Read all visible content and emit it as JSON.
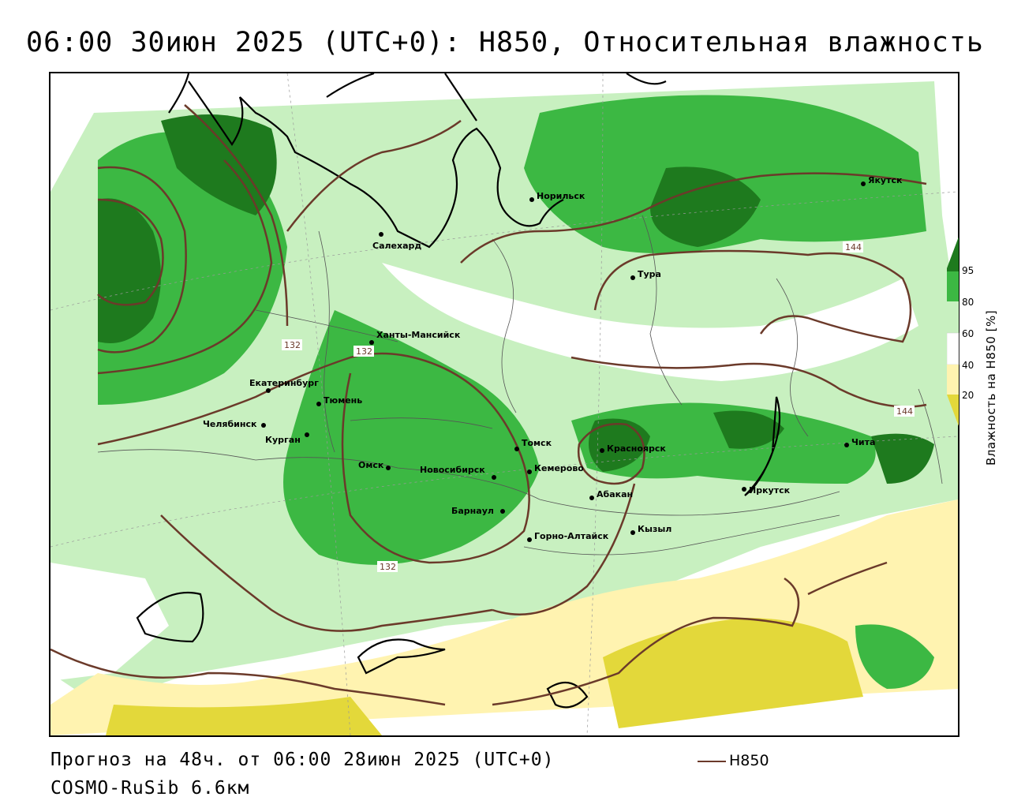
{
  "title": "06:00 30июн 2025 (UTC+0): H850, Относительная влажность",
  "footer": {
    "forecast": "Прогноз на 48ч. от 06:00 28июн 2025 (UTC+0)",
    "model": "COSMO-RuSib 6.6км"
  },
  "legend": {
    "line_label": "H850",
    "line_color": "#6b3a2a"
  },
  "colorbar": {
    "label": "Влажность на H850 [%]",
    "ticks": [
      "95",
      "80",
      "60",
      "40",
      "20"
    ],
    "colors": {
      "c95": "#1e7a1e",
      "c80": "#3cb843",
      "c60": "#c8f0c0",
      "c40": "#ffffff",
      "c20": "#fff3b0",
      "c0": "#e3d83a"
    }
  },
  "cities": [
    "Якутск",
    "Норильск",
    "Салехард",
    "Тура",
    "Ханты-Мансийск",
    "Екатеринбург",
    "Тюмень",
    "Челябинск",
    "Курган",
    "Омск",
    "Новосибирск",
    "Томск",
    "Кемерово",
    "Красноярск",
    "Абакан",
    "Барнаул",
    "Горно-Алтайск",
    "Кызыл",
    "Иркутск",
    "Чита"
  ],
  "isoline_labels": [
    "132",
    "132",
    "132",
    "144",
    "144"
  ]
}
